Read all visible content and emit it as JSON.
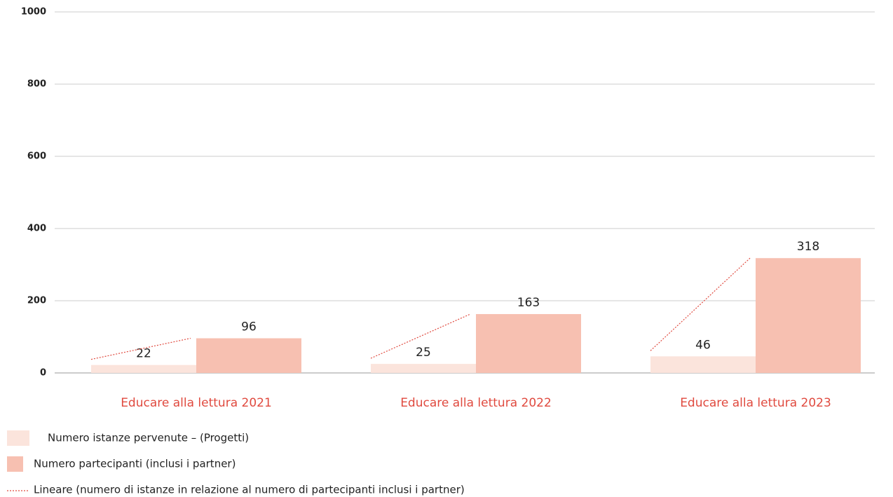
{
  "chart_data": {
    "type": "bar",
    "categories": [
      "Educare alla lettura 2021",
      "Educare alla lettura 2022",
      "Educare alla lettura 2023"
    ],
    "series": [
      {
        "name": "Numero istanze pervenute – (Progetti)",
        "color": "#fbe4dc",
        "values": [
          22,
          25,
          46
        ]
      },
      {
        "name": "Numero partecipanti (inclusi i partner)",
        "color": "#f7c0b1",
        "values": [
          96,
          163,
          318
        ]
      }
    ],
    "trendline": {
      "name": "Lineare (numero di istanze in relazione al numero di partecipanti inclusi i partner)",
      "color": "#e04a3f"
    },
    "ylim": [
      0,
      1000
    ],
    "yticks": [
      0,
      200,
      400,
      600,
      800,
      1000
    ],
    "grid": true
  }
}
